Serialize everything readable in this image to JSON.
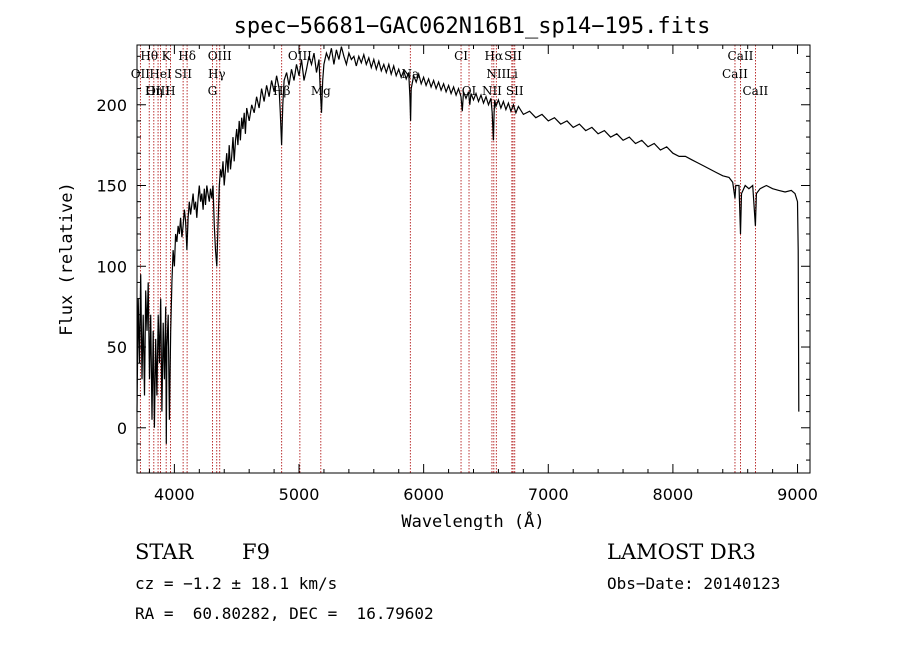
{
  "chart_data": {
    "type": "line",
    "title": "spec−56681−GAC062N16B1_sp14−195.fits",
    "xlabel": "Wavelength (Å)",
    "ylabel": "Flux (relative)",
    "xlim": [
      3700,
      9100
    ],
    "ylim": [
      -28,
      237
    ],
    "xticks": [
      4000,
      5000,
      6000,
      7000,
      8000,
      9000
    ],
    "yticks": [
      0,
      50,
      100,
      150,
      200
    ],
    "line_color": "#000000",
    "marker_color": "#aa0000",
    "spectrum": [
      [
        3700,
        10
      ],
      [
        3710,
        80
      ],
      [
        3720,
        40
      ],
      [
        3730,
        95
      ],
      [
        3740,
        30
      ],
      [
        3750,
        70
      ],
      [
        3760,
        20
      ],
      [
        3770,
        85
      ],
      [
        3780,
        60
      ],
      [
        3790,
        90
      ],
      [
        3800,
        30
      ],
      [
        3810,
        70
      ],
      [
        3820,
        5
      ],
      [
        3830,
        60
      ],
      [
        3840,
        0
      ],
      [
        3850,
        55
      ],
      [
        3860,
        20
      ],
      [
        3870,
        70
      ],
      [
        3880,
        40
      ],
      [
        3890,
        80
      ],
      [
        3900,
        10
      ],
      [
        3910,
        65
      ],
      [
        3920,
        30
      ],
      [
        3930,
        75
      ],
      [
        3935,
        -10
      ],
      [
        3940,
        50
      ],
      [
        3950,
        70
      ],
      [
        3960,
        5
      ],
      [
        3970,
        60
      ],
      [
        3980,
        90
      ],
      [
        3990,
        110
      ],
      [
        4000,
        100
      ],
      [
        4010,
        120
      ],
      [
        4020,
        115
      ],
      [
        4030,
        125
      ],
      [
        4040,
        120
      ],
      [
        4050,
        130
      ],
      [
        4060,
        118
      ],
      [
        4070,
        125
      ],
      [
        4080,
        135
      ],
      [
        4090,
        128
      ],
      [
        4100,
        110
      ],
      [
        4110,
        130
      ],
      [
        4120,
        140
      ],
      [
        4130,
        132
      ],
      [
        4140,
        138
      ],
      [
        4150,
        145
      ],
      [
        4160,
        135
      ],
      [
        4170,
        140
      ],
      [
        4180,
        130
      ],
      [
        4190,
        142
      ],
      [
        4200,
        150
      ],
      [
        4210,
        140
      ],
      [
        4220,
        145
      ],
      [
        4230,
        135
      ],
      [
        4240,
        148
      ],
      [
        4250,
        138
      ],
      [
        4260,
        150
      ],
      [
        4270,
        145
      ],
      [
        4280,
        140
      ],
      [
        4290,
        148
      ],
      [
        4300,
        142
      ],
      [
        4310,
        150
      ],
      [
        4320,
        125
      ],
      [
        4330,
        110
      ],
      [
        4340,
        100
      ],
      [
        4350,
        125
      ],
      [
        4360,
        150
      ],
      [
        4370,
        160
      ],
      [
        4380,
        155
      ],
      [
        4390,
        165
      ],
      [
        4400,
        150
      ],
      [
        4410,
        160
      ],
      [
        4420,
        170
      ],
      [
        4430,
        158
      ],
      [
        4440,
        175
      ],
      [
        4450,
        160
      ],
      [
        4460,
        168
      ],
      [
        4470,
        180
      ],
      [
        4480,
        165
      ],
      [
        4490,
        178
      ],
      [
        4500,
        185
      ],
      [
        4510,
        175
      ],
      [
        4520,
        190
      ],
      [
        4530,
        178
      ],
      [
        4540,
        192
      ],
      [
        4550,
        185
      ],
      [
        4560,
        195
      ],
      [
        4570,
        182
      ],
      [
        4580,
        198
      ],
      [
        4600,
        190
      ],
      [
        4620,
        200
      ],
      [
        4640,
        195
      ],
      [
        4660,
        205
      ],
      [
        4680,
        198
      ],
      [
        4700,
        210
      ],
      [
        4720,
        202
      ],
      [
        4740,
        212
      ],
      [
        4760,
        205
      ],
      [
        4780,
        215
      ],
      [
        4800,
        208
      ],
      [
        4820,
        218
      ],
      [
        4840,
        210
      ],
      [
        4850,
        195
      ],
      [
        4860,
        175
      ],
      [
        4870,
        200
      ],
      [
        4880,
        215
      ],
      [
        4900,
        220
      ],
      [
        4920,
        212
      ],
      [
        4940,
        222
      ],
      [
        4960,
        215
      ],
      [
        4980,
        225
      ],
      [
        5000,
        218
      ],
      [
        5020,
        228
      ],
      [
        5040,
        215
      ],
      [
        5060,
        222
      ],
      [
        5080,
        230
      ],
      [
        5100,
        225
      ],
      [
        5120,
        232
      ],
      [
        5140,
        220
      ],
      [
        5160,
        228
      ],
      [
        5170,
        210
      ],
      [
        5180,
        195
      ],
      [
        5190,
        215
      ],
      [
        5200,
        225
      ],
      [
        5220,
        232
      ],
      [
        5240,
        228
      ],
      [
        5260,
        235
      ],
      [
        5280,
        225
      ],
      [
        5300,
        234
      ],
      [
        5320,
        228
      ],
      [
        5340,
        236
      ],
      [
        5360,
        230
      ],
      [
        5380,
        225
      ],
      [
        5400,
        232
      ],
      [
        5420,
        228
      ],
      [
        5440,
        230
      ],
      [
        5460,
        224
      ],
      [
        5480,
        230
      ],
      [
        5500,
        226
      ],
      [
        5520,
        231
      ],
      [
        5540,
        225
      ],
      [
        5560,
        229
      ],
      [
        5580,
        223
      ],
      [
        5600,
        228
      ],
      [
        5620,
        222
      ],
      [
        5640,
        227
      ],
      [
        5660,
        221
      ],
      [
        5680,
        225
      ],
      [
        5700,
        220
      ],
      [
        5720,
        225
      ],
      [
        5740,
        219
      ],
      [
        5760,
        224
      ],
      [
        5780,
        218
      ],
      [
        5800,
        222
      ],
      [
        5820,
        217
      ],
      [
        5840,
        221
      ],
      [
        5860,
        216
      ],
      [
        5880,
        220
      ],
      [
        5890,
        205
      ],
      [
        5895,
        190
      ],
      [
        5900,
        210
      ],
      [
        5920,
        218
      ],
      [
        5940,
        214
      ],
      [
        5960,
        219
      ],
      [
        5980,
        213
      ],
      [
        6000,
        217
      ],
      [
        6020,
        212
      ],
      [
        6040,
        216
      ],
      [
        6060,
        211
      ],
      [
        6080,
        215
      ],
      [
        6100,
        210
      ],
      [
        6120,
        214
      ],
      [
        6140,
        209
      ],
      [
        6160,
        213
      ],
      [
        6180,
        208
      ],
      [
        6200,
        212
      ],
      [
        6220,
        207
      ],
      [
        6240,
        211
      ],
      [
        6260,
        206
      ],
      [
        6280,
        210
      ],
      [
        6300,
        205
      ],
      [
        6310,
        196
      ],
      [
        6320,
        208
      ],
      [
        6340,
        204
      ],
      [
        6360,
        208
      ],
      [
        6370,
        200
      ],
      [
        6380,
        207
      ],
      [
        6400,
        203
      ],
      [
        6420,
        207
      ],
      [
        6440,
        202
      ],
      [
        6460,
        206
      ],
      [
        6480,
        201
      ],
      [
        6500,
        205
      ],
      [
        6520,
        200
      ],
      [
        6540,
        204
      ],
      [
        6550,
        195
      ],
      [
        6560,
        178
      ],
      [
        6565,
        195
      ],
      [
        6570,
        203
      ],
      [
        6580,
        199
      ],
      [
        6600,
        203
      ],
      [
        6620,
        198
      ],
      [
        6640,
        202
      ],
      [
        6660,
        197
      ],
      [
        6680,
        201
      ],
      [
        6700,
        196
      ],
      [
        6720,
        200
      ],
      [
        6740,
        195
      ],
      [
        6760,
        199
      ],
      [
        6800,
        194
      ],
      [
        6850,
        196
      ],
      [
        6900,
        192
      ],
      [
        6950,
        194
      ],
      [
        7000,
        190
      ],
      [
        7050,
        192
      ],
      [
        7100,
        188
      ],
      [
        7150,
        190
      ],
      [
        7200,
        186
      ],
      [
        7250,
        188
      ],
      [
        7300,
        184
      ],
      [
        7350,
        186
      ],
      [
        7400,
        182
      ],
      [
        7450,
        184
      ],
      [
        7500,
        180
      ],
      [
        7550,
        182
      ],
      [
        7600,
        178
      ],
      [
        7650,
        180
      ],
      [
        7700,
        176
      ],
      [
        7750,
        178
      ],
      [
        7800,
        174
      ],
      [
        7850,
        176
      ],
      [
        7900,
        172
      ],
      [
        7950,
        174
      ],
      [
        8000,
        170
      ],
      [
        8050,
        168
      ],
      [
        8100,
        168
      ],
      [
        8150,
        166
      ],
      [
        8200,
        164
      ],
      [
        8250,
        162
      ],
      [
        8300,
        160
      ],
      [
        8350,
        158
      ],
      [
        8400,
        156
      ],
      [
        8450,
        155
      ],
      [
        8480,
        152
      ],
      [
        8498,
        142
      ],
      [
        8505,
        150
      ],
      [
        8530,
        150
      ],
      [
        8542,
        120
      ],
      [
        8550,
        145
      ],
      [
        8580,
        150
      ],
      [
        8610,
        148
      ],
      [
        8640,
        150
      ],
      [
        8662,
        125
      ],
      [
        8670,
        145
      ],
      [
        8700,
        148
      ],
      [
        8750,
        150
      ],
      [
        8800,
        148
      ],
      [
        8850,
        147
      ],
      [
        8900,
        146
      ],
      [
        8950,
        147
      ],
      [
        8980,
        145
      ],
      [
        9000,
        140
      ],
      [
        9005,
        110
      ],
      [
        9010,
        10
      ]
    ],
    "lines": [
      {
        "label": "Hθ",
        "x": 3798,
        "row": 0
      },
      {
        "label": "K",
        "x": 3934,
        "row": 0
      },
      {
        "label": "Hδ",
        "x": 4102,
        "row": 0
      },
      {
        "label": "OIII",
        "x": 4364,
        "row": 0
      },
      {
        "label": "OIII",
        "x": 5007,
        "row": 0
      },
      {
        "label": "CI",
        "x": 6300,
        "row": 0
      },
      {
        "label": "Hα",
        "x": 6563,
        "row": 0
      },
      {
        "label": "SII",
        "x": 6717,
        "row": 0
      },
      {
        "label": "CaII",
        "x": 8542,
        "row": 0
      },
      {
        "label": "OII",
        "x": 3727,
        "row": 1
      },
      {
        "label": "HeI",
        "x": 3889,
        "row": 1
      },
      {
        "label": "SII",
        "x": 4070,
        "row": 1
      },
      {
        "label": "Hγ",
        "x": 4340,
        "row": 1
      },
      {
        "label": "Na",
        "x": 5893,
        "row": 1
      },
      {
        "label": "NII",
        "x": 6583,
        "row": 1
      },
      {
        "label": "Li",
        "x": 6708,
        "row": 1
      },
      {
        "label": "CaII",
        "x": 8498,
        "row": 1
      },
      {
        "label": "OIII",
        "x": 3869,
        "row": 2
      },
      {
        "label": "Hη",
        "x": 3835,
        "row": 2
      },
      {
        "label": "H",
        "x": 3968,
        "row": 2
      },
      {
        "label": "G",
        "x": 4305,
        "row": 2
      },
      {
        "label": "Hβ",
        "x": 4861,
        "row": 2
      },
      {
        "label": "Mg",
        "x": 5175,
        "row": 2
      },
      {
        "label": "OI",
        "x": 6364,
        "row": 2
      },
      {
        "label": "NII",
        "x": 6548,
        "row": 2
      },
      {
        "label": "SII",
        "x": 6731,
        "row": 2
      },
      {
        "label": "CaII",
        "x": 8662,
        "row": 2
      }
    ]
  },
  "info": {
    "object_class": "STAR",
    "subclass": "F9",
    "cz": "cz = −1.2 ± 18.1 km/s",
    "radec": "RA =  60.80282, DEC =  16.79602",
    "survey": "LAMOST DR3",
    "obs_date": "Obs−Date: 20140123"
  }
}
